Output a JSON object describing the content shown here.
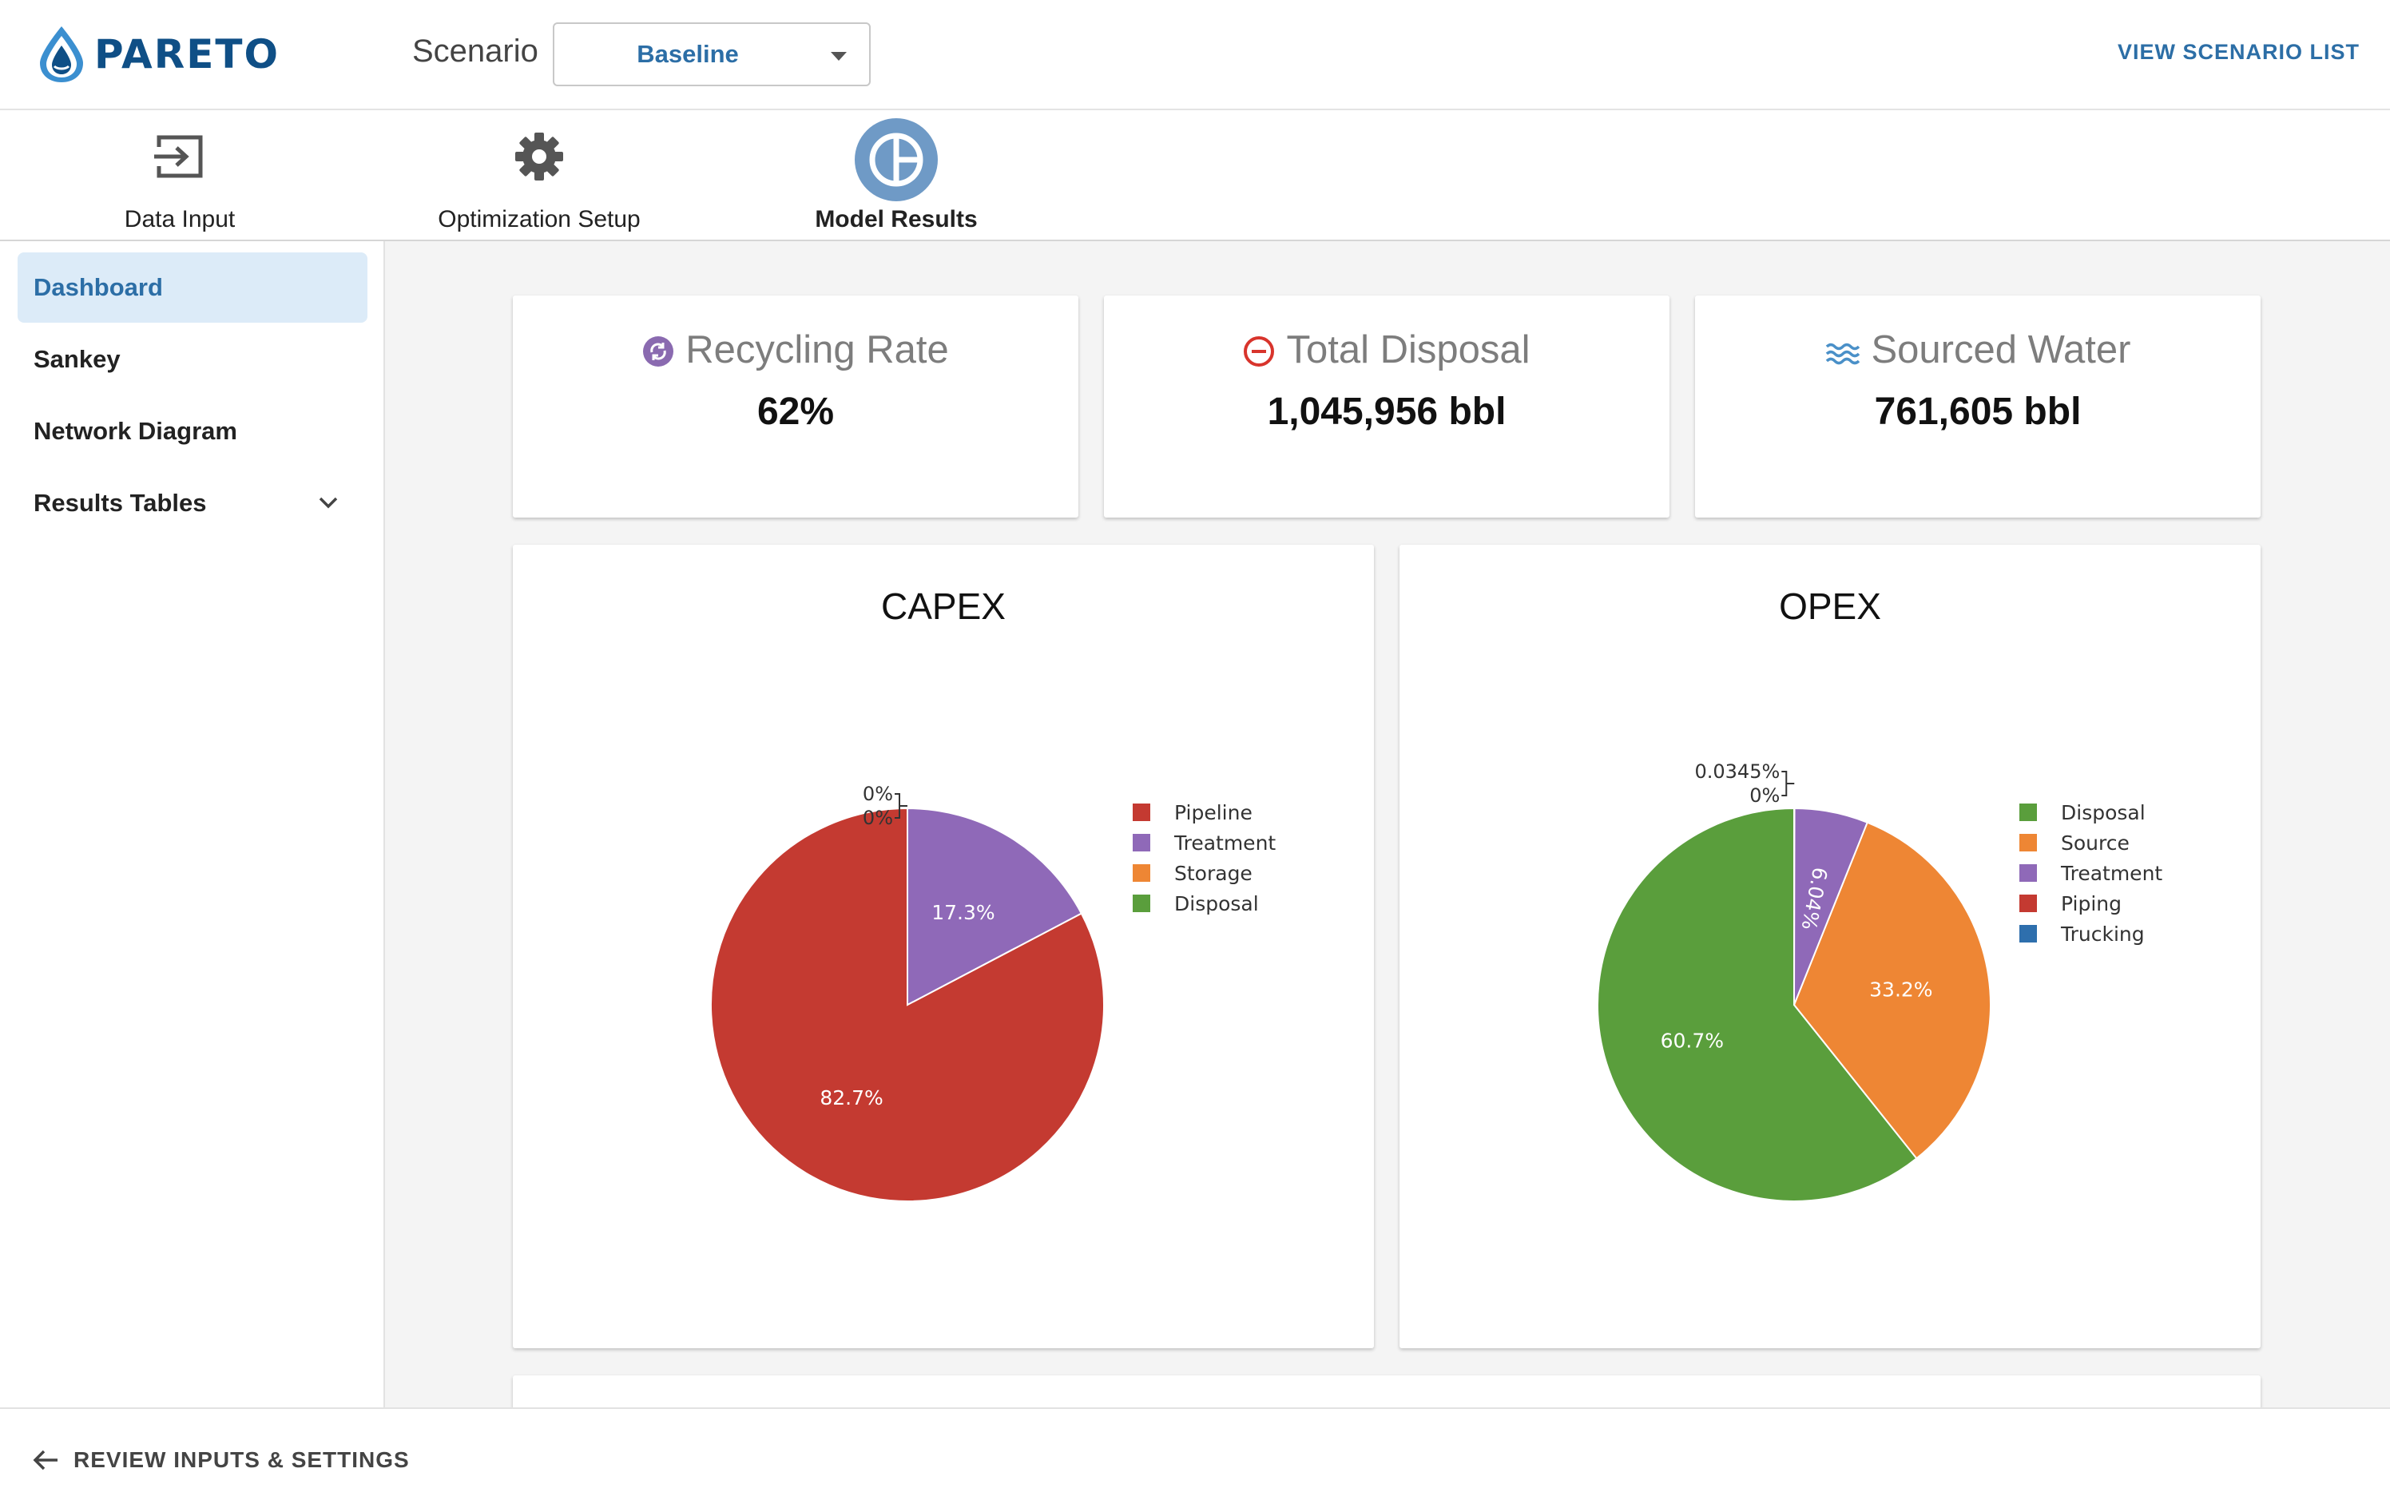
{
  "header": {
    "logo_text": "PARETO",
    "scenario_label": "Scenario",
    "scenario_value": "Baseline",
    "view_list_label": "VIEW SCENARIO LIST"
  },
  "nav": {
    "items": [
      {
        "label": "Data Input",
        "icon": "data-input-icon"
      },
      {
        "label": "Optimization Setup",
        "icon": "gear-icon"
      },
      {
        "label": "Model Results",
        "icon": "pie-chart-icon",
        "active": true
      }
    ]
  },
  "sidebar": {
    "items": [
      {
        "label": "Dashboard",
        "active": true
      },
      {
        "label": "Sankey"
      },
      {
        "label": "Network Diagram"
      },
      {
        "label": "Results Tables",
        "expandable": true
      }
    ]
  },
  "stats": [
    {
      "title": "Recycling Rate",
      "value": "62%",
      "icon": "recycle-icon",
      "icon_color": "#8a6ab0"
    },
    {
      "title": "Total Disposal",
      "value": "1,045,956 bbl",
      "icon": "minus-circle-icon",
      "icon_color": "#d8342c"
    },
    {
      "title": "Sourced Water",
      "value": "761,605 bbl",
      "icon": "water-waves-icon",
      "icon_color": "#4a90c8"
    }
  ],
  "chart_data": [
    {
      "type": "pie",
      "title": "CAPEX",
      "legend_placement": "right",
      "slices": [
        {
          "label": "Pipeline",
          "value": 82.7,
          "display": "82.7%",
          "color": "#c43a31"
        },
        {
          "label": "Treatment",
          "value": 17.3,
          "display": "17.3%",
          "color": "#8f69b8"
        },
        {
          "label": "Storage",
          "value": 0,
          "display": "0%",
          "color": "#ee8634"
        },
        {
          "label": "Disposal",
          "value": 0,
          "display": "0%",
          "color": "#5a9e3c"
        }
      ]
    },
    {
      "type": "pie",
      "title": "OPEX",
      "legend_placement": "right",
      "slices": [
        {
          "label": "Disposal",
          "value": 60.7,
          "display": "60.7%",
          "color": "#5a9e3c"
        },
        {
          "label": "Source",
          "value": 33.2,
          "display": "33.2%",
          "color": "#ee8634"
        },
        {
          "label": "Treatment",
          "value": 6.04,
          "display": "6.04%",
          "color": "#8f69b8"
        },
        {
          "label": "Piping",
          "value": 0.0345,
          "display": "0.0345%",
          "color": "#c43a31"
        },
        {
          "label": "Trucking",
          "value": 0,
          "display": "0%",
          "color": "#2e6fad"
        }
      ]
    }
  ],
  "footer": {
    "back_label": "REVIEW INPUTS & SETTINGS"
  }
}
